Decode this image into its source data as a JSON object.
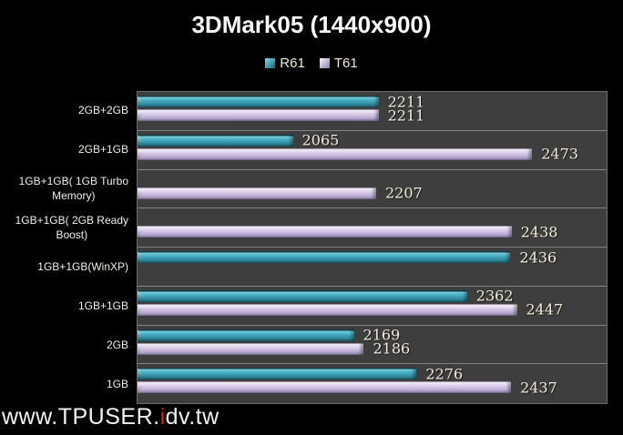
{
  "title": "3DMark05 (1440x900)",
  "legend": {
    "items": [
      {
        "label": "R61",
        "color": "#3f9fb4"
      },
      {
        "label": "T61",
        "color": "#cfc2e2"
      }
    ]
  },
  "watermark": {
    "prefix": "www.TPUSER.",
    "red_letter": "i",
    "suffix": "dv.tw"
  },
  "colors": {
    "background": "#000000",
    "plot_background": "#3e3e3e",
    "plot_border": "#6b6b6b",
    "separator": "#828282",
    "r61_bar_main": "#3f9fb4",
    "t61_bar_main": "#cfc2e2",
    "label_text": "#f1ebdc",
    "watermark_red": "#e31b1b"
  },
  "chart_data": {
    "type": "bar",
    "orientation": "horizontal",
    "title": "3DMark05 (1440x900)",
    "categories": [
      "2GB+2GB",
      "2GB+1GB",
      "1GB+1GB( 1GB Turbo Memory)",
      "1GB+1GB( 2GB Ready Boost)",
      "1GB+1GB(WinXP)",
      "1GB+1GB",
      "2GB",
      "1GB"
    ],
    "categories_display": [
      [
        "2GB+2GB"
      ],
      [
        "2GB+1GB"
      ],
      [
        "1GB+1GB( 1GB Turbo",
        "Memory)"
      ],
      [
        "1GB+1GB( 2GB Ready",
        "Boost)"
      ],
      [
        "1GB+1GB(WinXP)"
      ],
      [
        "1GB+1GB"
      ],
      [
        "2GB"
      ],
      [
        "1GB"
      ]
    ],
    "series": [
      {
        "name": "R61",
        "values": [
          2211,
          2065,
          null,
          null,
          2436,
          2362,
          2169,
          2276
        ]
      },
      {
        "name": "T61",
        "values": [
          2211,
          2473,
          2207,
          2438,
          null,
          2447,
          2186,
          2437
        ]
      }
    ],
    "value_axis": {
      "min": 1800,
      "max": 2600,
      "visible": false
    },
    "category_axis_side": "left",
    "legend_position": "top",
    "data_labels": true,
    "gridlines": "category-separators"
  }
}
